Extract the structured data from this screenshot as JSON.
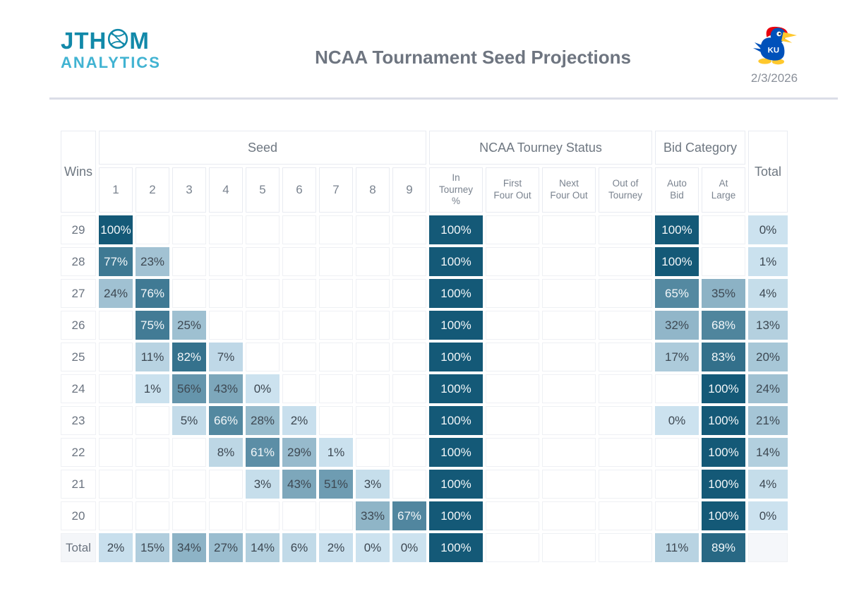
{
  "header": {
    "logo_text_left": "JTH",
    "logo_text_right": "M",
    "logo_line2": "ANALYTICS",
    "title": "NCAA Tournament Seed Projections",
    "date": "2/3/2026",
    "team_logo": "kansas-jayhawk-icon"
  },
  "colors": {
    "brand_teal": "#1289A9",
    "brand_cyan": "#41B3D2",
    "title_gray": "#6E7580",
    "divider_gray": "#DBDDE7",
    "scale_min": "#CCE2EF",
    "scale_max": "#145977",
    "cell_text_dark": "#3D4852",
    "cell_text_light": "#F3F7F9",
    "jayhawk_blue": "#0051BA",
    "jayhawk_red": "#E8000D",
    "jayhawk_yellow": "#FFC82D"
  },
  "chart_data": {
    "type": "heatmap",
    "title": "NCAA Tournament Seed Projections",
    "row_header": "Wins",
    "col_groups": [
      {
        "label": "Seed",
        "cols": [
          "1",
          "2",
          "3",
          "4",
          "5",
          "6",
          "7",
          "8",
          "9"
        ]
      },
      {
        "label": "NCAA Tourney Status",
        "cols": [
          "In Tourney %",
          "First Four Out",
          "Next Four Out",
          "Out of Tourney"
        ]
      },
      {
        "label": "Bid Category",
        "cols": [
          "Auto Bid",
          "At Large"
        ]
      }
    ],
    "total_col_header": "Total",
    "value_suffix": "%",
    "color_scale": {
      "min_value": 0,
      "max_value": 100,
      "white_text_threshold": 58
    },
    "rows": [
      {
        "label": "29",
        "seeds": [
          100,
          null,
          null,
          null,
          null,
          null,
          null,
          null,
          null
        ],
        "status": [
          100,
          null,
          null,
          null
        ],
        "bid": [
          100,
          null
        ],
        "total": 0
      },
      {
        "label": "28",
        "seeds": [
          77,
          23,
          null,
          null,
          null,
          null,
          null,
          null,
          null
        ],
        "status": [
          100,
          null,
          null,
          null
        ],
        "bid": [
          100,
          null
        ],
        "total": 1
      },
      {
        "label": "27",
        "seeds": [
          24,
          76,
          null,
          null,
          null,
          null,
          null,
          null,
          null
        ],
        "status": [
          100,
          null,
          null,
          null
        ],
        "bid": [
          65,
          35
        ],
        "total": 4
      },
      {
        "label": "26",
        "seeds": [
          null,
          75,
          25,
          null,
          null,
          null,
          null,
          null,
          null
        ],
        "status": [
          100,
          null,
          null,
          null
        ],
        "bid": [
          32,
          68
        ],
        "total": 13
      },
      {
        "label": "25",
        "seeds": [
          null,
          11,
          82,
          7,
          null,
          null,
          null,
          null,
          null
        ],
        "status": [
          100,
          null,
          null,
          null
        ],
        "bid": [
          17,
          83
        ],
        "total": 20
      },
      {
        "label": "24",
        "seeds": [
          null,
          1,
          56,
          43,
          0,
          null,
          null,
          null,
          null
        ],
        "status": [
          100,
          null,
          null,
          null
        ],
        "bid": [
          null,
          100
        ],
        "total": 24
      },
      {
        "label": "23",
        "seeds": [
          null,
          null,
          5,
          66,
          28,
          2,
          null,
          null,
          null
        ],
        "status": [
          100,
          null,
          null,
          null
        ],
        "bid": [
          0,
          100
        ],
        "total": 21
      },
      {
        "label": "22",
        "seeds": [
          null,
          null,
          null,
          8,
          61,
          29,
          1,
          null,
          null
        ],
        "status": [
          100,
          null,
          null,
          null
        ],
        "bid": [
          null,
          100
        ],
        "total": 14
      },
      {
        "label": "21",
        "seeds": [
          null,
          null,
          null,
          null,
          3,
          43,
          51,
          3,
          null
        ],
        "status": [
          100,
          null,
          null,
          null
        ],
        "bid": [
          null,
          100
        ],
        "total": 4
      },
      {
        "label": "20",
        "seeds": [
          null,
          null,
          null,
          null,
          null,
          null,
          null,
          33,
          67
        ],
        "status": [
          100,
          null,
          null,
          null
        ],
        "bid": [
          null,
          100
        ],
        "total": 0
      },
      {
        "label": "Total",
        "is_total": true,
        "seeds": [
          2,
          15,
          34,
          27,
          14,
          6,
          2,
          0,
          0
        ],
        "status": [
          100,
          null,
          null,
          null
        ],
        "bid": [
          11,
          89
        ],
        "total": null
      }
    ]
  }
}
